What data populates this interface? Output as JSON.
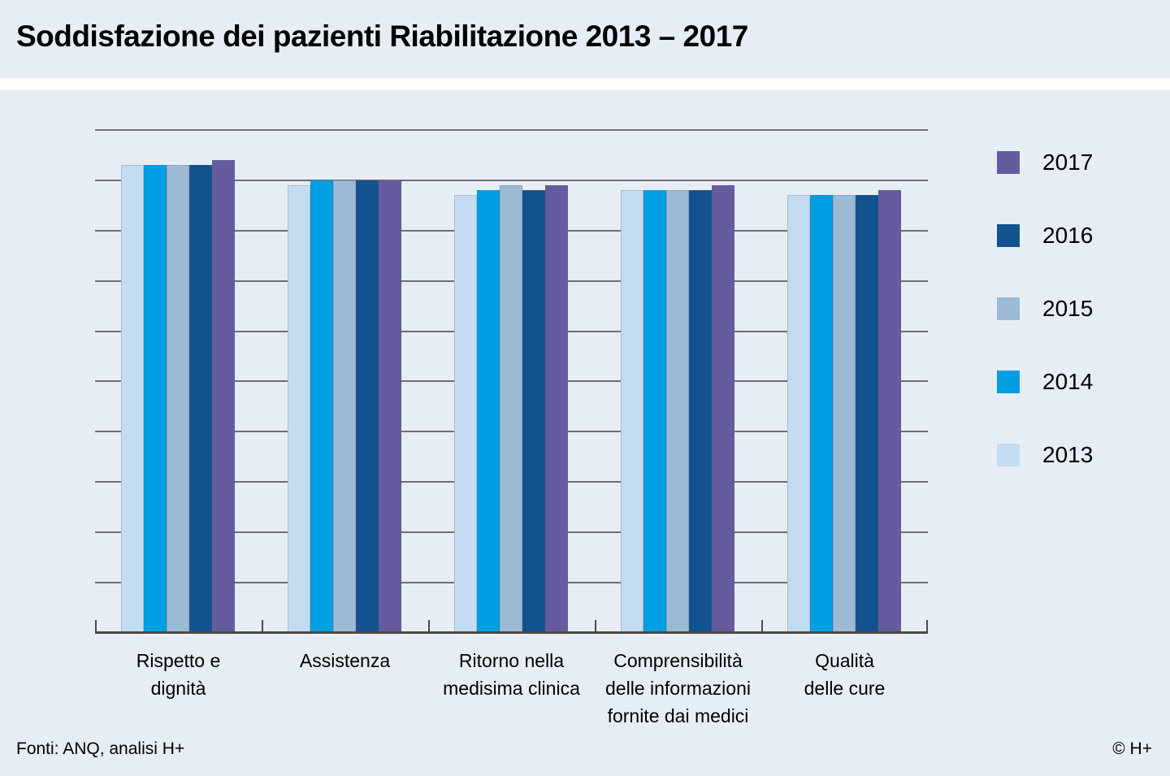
{
  "title": "Soddisfazione dei pazienti Riabilitazione 2013 – 2017",
  "footer": {
    "source": "Fonti: ANQ, analisi H+",
    "copyright": "© H+"
  },
  "colors": {
    "background": "#e7edf4",
    "gridline": "#6f6f6d",
    "axis": "#4b4b46",
    "year_2013": "#c3dcf2",
    "year_2014": "#009fe3",
    "year_2015": "#9dbad5",
    "year_2016": "#11528f",
    "year_2017": "#655c9f"
  },
  "chart_data": {
    "type": "bar",
    "title": "Soddisfazione dei pazienti Riabilitazione 2013 – 2017",
    "xlabel": "",
    "ylabel": "",
    "ylim": [
      0,
      10
    ],
    "yticks": [
      0,
      1,
      2,
      3,
      4,
      5,
      6,
      7,
      8,
      9,
      10
    ],
    "grid": true,
    "legend_position": "right",
    "legend_order": [
      "2017",
      "2016",
      "2015",
      "2014",
      "2013"
    ],
    "categories": [
      {
        "label": "Rispetto e dignità",
        "lines": [
          "Rispetto e",
          "dignità"
        ]
      },
      {
        "label": "Assistenza",
        "lines": [
          "Assistenza"
        ]
      },
      {
        "label": "Ritorno nella medisima clinica",
        "lines": [
          "Ritorno nella",
          "medisima clinica"
        ]
      },
      {
        "label": "Comprensibilità delle informazioni fornite dai medici",
        "lines": [
          "Comprensibilità",
          "delle informazioni",
          "fornite dai medici"
        ]
      },
      {
        "label": "Qualità delle cure",
        "lines": [
          "Qualità",
          "delle cure"
        ]
      }
    ],
    "series": [
      {
        "name": "2013",
        "color": "#c3dcf2",
        "values": [
          9.3,
          8.9,
          8.7,
          8.8,
          8.7
        ]
      },
      {
        "name": "2014",
        "color": "#009fe3",
        "values": [
          9.3,
          9.0,
          8.8,
          8.8,
          8.7
        ]
      },
      {
        "name": "2015",
        "color": "#9dbad5",
        "values": [
          9.3,
          9.0,
          8.9,
          8.8,
          8.7
        ]
      },
      {
        "name": "2016",
        "color": "#11528f",
        "values": [
          9.3,
          9.0,
          8.8,
          8.8,
          8.7
        ]
      },
      {
        "name": "2017",
        "color": "#655c9f",
        "values": [
          9.4,
          9.0,
          8.9,
          8.9,
          8.8
        ]
      }
    ]
  }
}
